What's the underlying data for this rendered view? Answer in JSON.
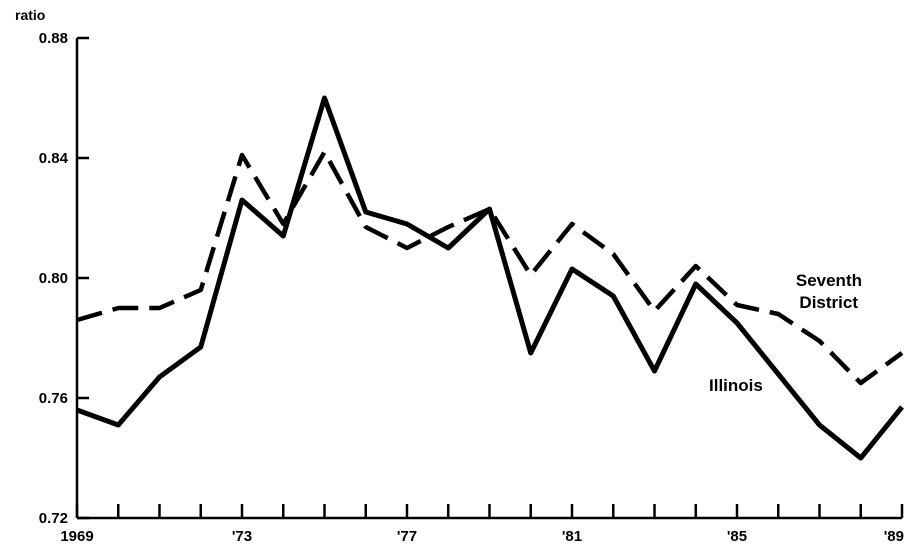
{
  "chart_data": {
    "type": "line",
    "ylabel": "ratio",
    "ylim": [
      0.72,
      0.88
    ],
    "xlim": [
      1969,
      1989
    ],
    "yticks": [
      0.72,
      0.76,
      0.8,
      0.84,
      0.88
    ],
    "ytick_labels": [
      "0.72",
      "0.76",
      "0.80",
      "0.84",
      "0.88"
    ],
    "xtick_values": [
      1969,
      1973,
      1977,
      1981,
      1985,
      1989
    ],
    "xtick_labels": [
      "1969",
      "'73",
      "'77",
      "'81",
      "'85",
      "'89"
    ],
    "x": [
      1969,
      1970,
      1971,
      1972,
      1973,
      1974,
      1975,
      1976,
      1977,
      1978,
      1979,
      1980,
      1981,
      1982,
      1983,
      1984,
      1985,
      1986,
      1987,
      1988,
      1989
    ],
    "grid": false,
    "legend": "none",
    "series": [
      {
        "name": "Illinois",
        "style": "solid",
        "color": "#000000",
        "values": [
          0.756,
          0.751,
          0.767,
          0.777,
          0.826,
          0.814,
          0.86,
          0.822,
          0.818,
          0.81,
          0.823,
          0.775,
          0.803,
          0.794,
          0.769,
          0.798,
          0.785,
          0.768,
          0.751,
          0.74,
          0.757
        ]
      },
      {
        "name": "Seventh District",
        "name_lines": [
          "Seventh",
          "District"
        ],
        "style": "dashed",
        "color": "#000000",
        "values": [
          0.786,
          0.79,
          0.79,
          0.796,
          0.841,
          0.818,
          0.842,
          0.817,
          0.81,
          0.817,
          0.823,
          0.801,
          0.818,
          0.808,
          0.789,
          0.804,
          0.791,
          0.788,
          0.779,
          0.765,
          0.775
        ]
      }
    ]
  }
}
